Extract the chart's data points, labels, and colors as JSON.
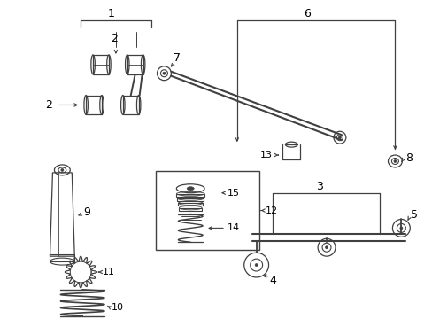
{
  "background_color": "#ffffff",
  "line_color": "#404040",
  "figsize": [
    4.89,
    3.6
  ],
  "dpi": 100
}
